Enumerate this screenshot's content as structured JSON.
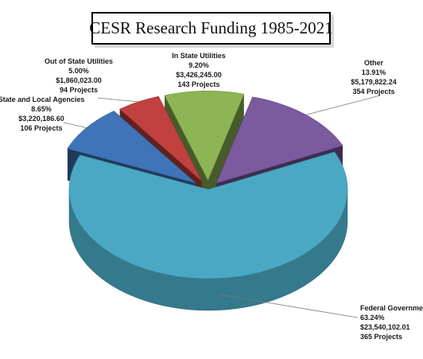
{
  "chart_data": {
    "type": "pie",
    "title": "CESR Research Funding 1985-2021",
    "slices": [
      {
        "name": "Other",
        "percent_label": "13.91%",
        "amount": "$5,179,822.24",
        "projects": "354 Projects",
        "value": 13.91,
        "color": "#7b5aa0"
      },
      {
        "name": "Federal Government",
        "percent_label": "63.24%",
        "amount": "$23,540,102.01",
        "projects": "365 Projects",
        "value": 63.24,
        "color": "#4aa8c4"
      },
      {
        "name": "State and Local Agencies",
        "percent_label": "8.65%",
        "amount": "$3,220,186.60",
        "projects": "106 Projects",
        "value": 8.65,
        "color": "#3f74b8"
      },
      {
        "name": "Out of State Utilities",
        "percent_label": "5.00%",
        "amount": "$1,860,023.00",
        "projects": "94 Projects",
        "value": 5.0,
        "color": "#c0413d"
      },
      {
        "name": "In State Utilities",
        "percent_label": "9.20%",
        "amount": "$3,426,245.00",
        "projects": "143 Projects",
        "value": 9.2,
        "color": "#8db553"
      }
    ]
  }
}
